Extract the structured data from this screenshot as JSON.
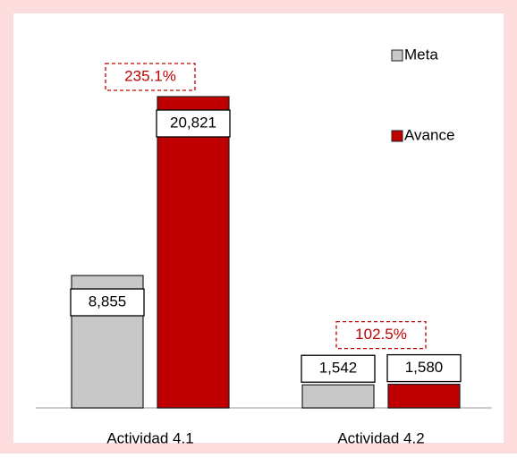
{
  "chart_data": {
    "type": "bar",
    "categories": [
      "Actividad 4.1",
      "Actividad 4.2"
    ],
    "series": [
      {
        "name": "Meta",
        "color": "#c8c8c8",
        "values": [
          8855,
          1542
        ],
        "value_labels": [
          "8,855",
          "1,542"
        ]
      },
      {
        "name": "Avance",
        "color": "#c00000",
        "values": [
          20821,
          1580
        ],
        "value_labels": [
          "20,821",
          "1,580"
        ]
      }
    ],
    "annotations": [
      "235.1%",
      "102.5%"
    ],
    "annotation_color": "#c00000"
  }
}
